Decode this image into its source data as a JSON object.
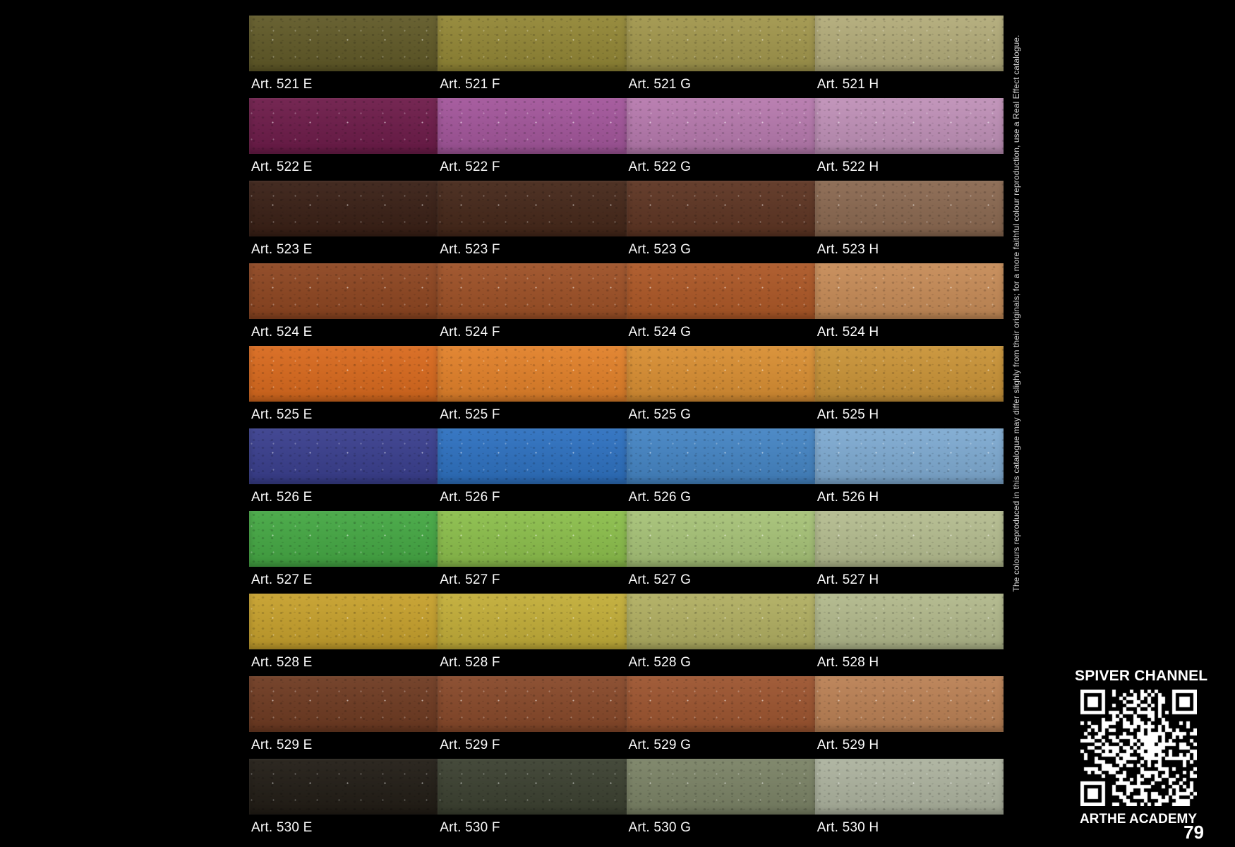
{
  "page": {
    "number": "79",
    "background": "#000000",
    "disclaimer": "The colours reproduced in this catalogue may differ slighly from their originals; for a more faithful colour reproduction, use a Real Effect catalogue."
  },
  "qr_block": {
    "title": "SPIVER CHANNEL",
    "caption": "ARTHE ACADEMY",
    "qr_style": {
      "modules": "#ffffff",
      "background": "#000000"
    }
  },
  "swatch_grid": {
    "label_prefix": "Art.",
    "variant_letters": [
      "E",
      "F",
      "G",
      "H"
    ],
    "text_color": "#fafafa",
    "rows": [
      {
        "article": "521",
        "variants": [
          {
            "code": "E",
            "label": "Art. 521 E",
            "color": "#615a28"
          },
          {
            "code": "F",
            "label": "Art. 521 F",
            "color": "#938736"
          },
          {
            "code": "G",
            "label": "Art. 521 G",
            "color": "#a2974d"
          },
          {
            "code": "H",
            "label": "Art. 521 H",
            "color": "#b3ac7a"
          }
        ]
      },
      {
        "article": "522",
        "variants": [
          {
            "code": "E",
            "label": "Art. 522 E",
            "color": "#6e1c4a"
          },
          {
            "code": "F",
            "label": "Art. 522 F",
            "color": "#a3569b"
          },
          {
            "code": "G",
            "label": "Art. 522 G",
            "color": "#b77aae"
          },
          {
            "code": "H",
            "label": "Art. 522 H",
            "color": "#c091b8"
          }
        ]
      },
      {
        "article": "523",
        "variants": [
          {
            "code": "E",
            "label": "Art. 523 E",
            "color": "#3a2016"
          },
          {
            "code": "F",
            "label": "Art. 523 F",
            "color": "#46281a"
          },
          {
            "code": "G",
            "label": "Art. 523 G",
            "color": "#5e3523"
          },
          {
            "code": "H",
            "label": "Art. 523 H",
            "color": "#8b6951"
          }
        ]
      },
      {
        "article": "524",
        "variants": [
          {
            "code": "E",
            "label": "Art. 524 E",
            "color": "#8e4621"
          },
          {
            "code": "F",
            "label": "Art. 524 F",
            "color": "#9e5127"
          },
          {
            "code": "G",
            "label": "Art. 524 G",
            "color": "#ad5827"
          },
          {
            "code": "H",
            "label": "Art. 524 H",
            "color": "#c78c58"
          }
        ]
      },
      {
        "article": "525",
        "variants": [
          {
            "code": "E",
            "label": "Art. 525 E",
            "color": "#d96a1e"
          },
          {
            "code": "F",
            "label": "Art. 525 F",
            "color": "#e2812a"
          },
          {
            "code": "G",
            "label": "Art. 525 G",
            "color": "#d98f33"
          },
          {
            "code": "H",
            "label": "Art. 525 H",
            "color": "#ca9438"
          }
        ]
      },
      {
        "article": "526",
        "variants": [
          {
            "code": "E",
            "label": "Art. 526 E",
            "color": "#3a3f8e"
          },
          {
            "code": "F",
            "label": "Art. 526 F",
            "color": "#2e71c0"
          },
          {
            "code": "G",
            "label": "Art. 526 G",
            "color": "#4585c4"
          },
          {
            "code": "H",
            "label": "Art. 526 H",
            "color": "#7fabd2"
          }
        ]
      },
      {
        "article": "527",
        "variants": [
          {
            "code": "E",
            "label": "Art. 527 E",
            "color": "#45a844"
          },
          {
            "code": "F",
            "label": "Art. 527 F",
            "color": "#8cbf4c"
          },
          {
            "code": "G",
            "label": "Art. 527 G",
            "color": "#a7c378"
          },
          {
            "code": "H",
            "label": "Art. 527 H",
            "color": "#b5bd90"
          }
        ]
      },
      {
        "article": "528",
        "variants": [
          {
            "code": "E",
            "label": "Art. 528 E",
            "color": "#c7a12d"
          },
          {
            "code": "F",
            "label": "Art. 528 F",
            "color": "#c3ae39"
          },
          {
            "code": "G",
            "label": "Art. 528 G",
            "color": "#b1af62"
          },
          {
            "code": "H",
            "label": "Art. 528 H",
            "color": "#b2b98c"
          }
        ]
      },
      {
        "article": "529",
        "variants": [
          {
            "code": "E",
            "label": "Art. 529 E",
            "color": "#6f3b22"
          },
          {
            "code": "F",
            "label": "Art. 529 F",
            "color": "#88492a"
          },
          {
            "code": "G",
            "label": "Art. 529 G",
            "color": "#9d5530"
          },
          {
            "code": "H",
            "label": "Art. 529 H",
            "color": "#bb8155"
          }
        ]
      },
      {
        "article": "530",
        "variants": [
          {
            "code": "E",
            "label": "Art. 530 E",
            "color": "#221d16"
          },
          {
            "code": "F",
            "label": "Art. 530 F",
            "color": "#3c4131"
          },
          {
            "code": "G",
            "label": "Art. 530 G",
            "color": "#7b8366"
          },
          {
            "code": "H",
            "label": "Art. 530 H",
            "color": "#adb39f"
          }
        ]
      }
    ]
  }
}
